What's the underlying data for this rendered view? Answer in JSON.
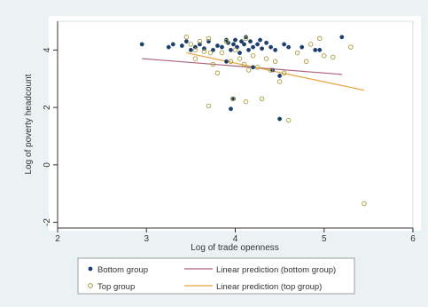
{
  "chart_data": {
    "type": "scatter",
    "xlabel": "Log of trade openness",
    "ylabel": "Log of poverty headcount",
    "xlim": [
      2,
      6
    ],
    "ylim": [
      -2.2,
      5
    ],
    "x_ticks": [
      2,
      3,
      4,
      5,
      6
    ],
    "y_ticks": [
      4,
      2,
      0,
      -2
    ],
    "grid": false,
    "legend_position": "bottom",
    "legend": {
      "bottom_group": "Bottom group",
      "top_group": "Top group",
      "lp_bottom": "Linear prediction (bottom group)",
      "lp_top": "Linear prediction (top group)"
    },
    "series": [
      {
        "name": "Bottom group",
        "marker": "filled-circle",
        "color": "#1c3f6e",
        "points": [
          [
            2.95,
            4.2
          ],
          [
            3.25,
            4.1
          ],
          [
            3.3,
            4.2
          ],
          [
            3.4,
            4.15
          ],
          [
            3.45,
            4.3
          ],
          [
            3.5,
            4.0
          ],
          [
            3.55,
            4.1
          ],
          [
            3.6,
            4.2
          ],
          [
            3.65,
            4.05
          ],
          [
            3.7,
            4.3
          ],
          [
            3.75,
            4.0
          ],
          [
            3.8,
            4.15
          ],
          [
            3.85,
            4.1
          ],
          [
            3.9,
            4.35
          ],
          [
            3.92,
            4.25
          ],
          [
            3.95,
            4.0
          ],
          [
            3.98,
            4.2
          ],
          [
            4.0,
            4.35
          ],
          [
            4.02,
            4.1
          ],
          [
            4.05,
            3.9
          ],
          [
            4.07,
            4.3
          ],
          [
            4.1,
            4.2
          ],
          [
            4.12,
            4.45
          ],
          [
            4.15,
            4.0
          ],
          [
            4.17,
            4.3
          ],
          [
            4.2,
            4.1
          ],
          [
            4.25,
            4.2
          ],
          [
            4.28,
            4.35
          ],
          [
            4.3,
            4.05
          ],
          [
            4.35,
            4.25
          ],
          [
            4.4,
            4.1
          ],
          [
            4.42,
            3.3
          ],
          [
            4.45,
            4.0
          ],
          [
            4.5,
            3.1
          ],
          [
            4.55,
            4.2
          ],
          [
            4.6,
            4.1
          ],
          [
            4.75,
            4.1
          ],
          [
            4.9,
            4.0
          ],
          [
            4.95,
            4.0
          ],
          [
            5.2,
            4.45
          ],
          [
            3.95,
            1.95
          ],
          [
            3.98,
            2.3
          ],
          [
            4.5,
            1.6
          ],
          [
            4.2,
            3.4
          ],
          [
            3.9,
            3.6
          ]
        ]
      },
      {
        "name": "Top group",
        "marker": "hollow-circle",
        "color": "#a99b3c",
        "points": [
          [
            3.45,
            4.45
          ],
          [
            3.5,
            4.2
          ],
          [
            3.55,
            4.0
          ],
          [
            3.6,
            4.3
          ],
          [
            3.65,
            3.95
          ],
          [
            3.7,
            4.4
          ],
          [
            3.72,
            3.9
          ],
          [
            3.75,
            3.5
          ],
          [
            3.8,
            3.2
          ],
          [
            3.85,
            3.9
          ],
          [
            3.9,
            4.3
          ],
          [
            3.95,
            3.6
          ],
          [
            3.97,
            2.3
          ],
          [
            4.0,
            4.0
          ],
          [
            4.05,
            3.7
          ],
          [
            4.1,
            3.5
          ],
          [
            4.12,
            4.4
          ],
          [
            4.15,
            3.3
          ],
          [
            4.2,
            3.8
          ],
          [
            4.25,
            3.4
          ],
          [
            4.3,
            2.3
          ],
          [
            4.35,
            3.7
          ],
          [
            4.4,
            3.3
          ],
          [
            4.45,
            3.6
          ],
          [
            4.5,
            2.9
          ],
          [
            4.55,
            3.2
          ],
          [
            4.6,
            1.55
          ],
          [
            4.7,
            3.9
          ],
          [
            4.8,
            3.6
          ],
          [
            4.85,
            4.2
          ],
          [
            4.95,
            4.4
          ],
          [
            5.0,
            3.8
          ],
          [
            5.1,
            3.75
          ],
          [
            5.3,
            4.1
          ],
          [
            5.45,
            -1.35
          ],
          [
            3.7,
            2.05
          ],
          [
            4.12,
            2.2
          ],
          [
            3.55,
            3.7
          ]
        ]
      },
      {
        "name": "Linear prediction (bottom group)",
        "type": "line",
        "color": "#b0607a",
        "x": [
          2.95,
          5.2
        ],
        "y": [
          3.7,
          3.15
        ]
      },
      {
        "name": "Linear prediction (top group)",
        "type": "line",
        "color": "#e8a33a",
        "x": [
          3.45,
          5.45
        ],
        "y": [
          3.9,
          2.6
        ]
      }
    ]
  }
}
